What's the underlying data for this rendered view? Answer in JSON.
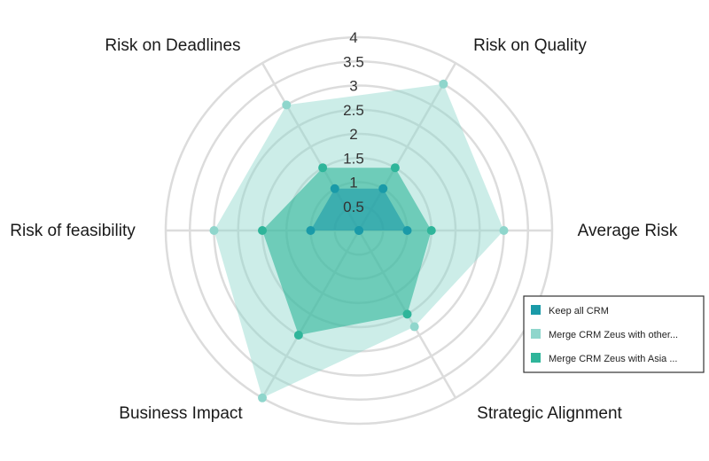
{
  "chart_data": {
    "type": "radar",
    "title": "",
    "axes": [
      "Risk on Quality",
      "Average Risk",
      "Strategic Alignment",
      "Business Impact",
      "Risk of feasibility",
      "Risk on Deadlines"
    ],
    "rlim": [
      0,
      4
    ],
    "ticks": [
      "0.5",
      "1",
      "1.5",
      "2",
      "2.5",
      "3",
      "3.5",
      "4"
    ],
    "grid": true,
    "legend_position": "bottom-right",
    "series": [
      {
        "name": "Keep all CRM",
        "color": "#1a9aa8",
        "values": [
          1,
          1,
          0,
          0,
          1,
          1
        ]
      },
      {
        "name": "Merge CRM Zeus with other...",
        "color": "#8fd6cc",
        "values": [
          3.5,
          3,
          2.3,
          4,
          3,
          3
        ]
      },
      {
        "name": "Merge CRM Zeus with Asia ...",
        "color": "#2fb59a",
        "values": [
          1.5,
          1.5,
          2,
          2.5,
          2,
          1.5
        ]
      }
    ]
  }
}
